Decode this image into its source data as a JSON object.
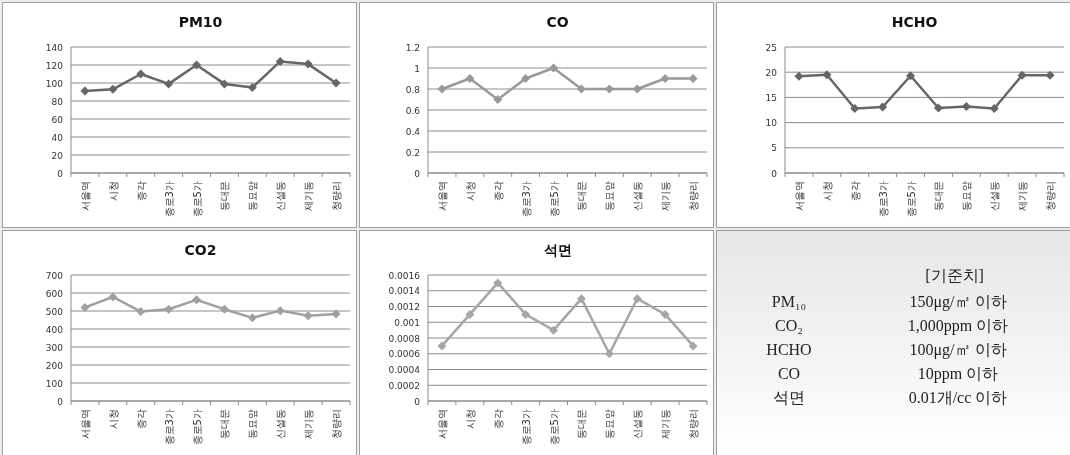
{
  "chart_data": [
    {
      "type": "line",
      "title": "PM10",
      "categories": [
        "서울역",
        "시청",
        "종각",
        "종로3가",
        "종로5가",
        "동대문",
        "동묘앞",
        "신설동",
        "제기동",
        "청량리"
      ],
      "series": [
        {
          "color": "#666666",
          "values": [
            91,
            93,
            110,
            99,
            120,
            99,
            95,
            124,
            121,
            100
          ]
        }
      ],
      "ylim": [
        0,
        140
      ],
      "yticks": [
        0,
        20,
        40,
        60,
        80,
        100,
        120,
        140
      ],
      "grid": "y",
      "marker": "diamond",
      "line_style": "solid"
    },
    {
      "type": "line",
      "title": "CO",
      "categories": [
        "서울역",
        "시청",
        "종각",
        "종로3가",
        "종로5가",
        "동대문",
        "동묘앞",
        "신설동",
        "제기동",
        "청량리"
      ],
      "series": [
        {
          "color": "#999999",
          "values": [
            0.8,
            0.9,
            0.7,
            0.9,
            1,
            0.8,
            0.8,
            0.8,
            0.9,
            0.9
          ]
        }
      ],
      "ylim": [
        0,
        1.2
      ],
      "yticks": [
        0,
        0.2,
        0.4,
        0.6,
        0.8,
        1,
        1.2
      ],
      "grid": "y",
      "marker": "diamond",
      "line_style": "solid"
    },
    {
      "type": "line",
      "title": "HCHO",
      "categories": [
        "서울역",
        "시청",
        "종각",
        "종로3가",
        "종로5가",
        "동대문",
        "동묘앞",
        "신설동",
        "제기동",
        "청량리"
      ],
      "series": [
        {
          "color": "#666666",
          "values": [
            19.2,
            19.5,
            12.8,
            13.1,
            19.3,
            12.9,
            13.2,
            12.8,
            19.4,
            19.4
          ]
        }
      ],
      "ylim": [
        0,
        25
      ],
      "yticks": [
        0,
        5,
        10,
        15,
        20,
        25
      ],
      "grid": "y",
      "marker": "diamond",
      "line_style": "solid"
    },
    {
      "type": "line",
      "title": "CO2",
      "categories": [
        "서울역",
        "시청",
        "종각",
        "종로3가",
        "종로5가",
        "동대문",
        "동묘앞",
        "신설동",
        "제기동",
        "청량리"
      ],
      "series": [
        {
          "color": "#a0a0a0",
          "values": [
            520,
            578,
            497,
            510,
            562,
            510,
            462,
            502,
            474,
            484
          ]
        }
      ],
      "ylim": [
        0,
        700
      ],
      "yticks": [
        0,
        100,
        200,
        300,
        400,
        500,
        600,
        700
      ],
      "grid": "y",
      "marker": "diamond",
      "line_style": "solid"
    },
    {
      "type": "line",
      "title": "석면",
      "categories": [
        "서울역",
        "시청",
        "종각",
        "종로3가",
        "종로5가",
        "동대문",
        "동묘앞",
        "신설동",
        "제기동",
        "청량리"
      ],
      "series": [
        {
          "color": "#a6a6a6",
          "values": [
            0.0007,
            0.0011,
            0.0015,
            0.0011,
            0.0009,
            0.0013,
            0.0006,
            0.0013,
            0.0011,
            0.0007
          ]
        }
      ],
      "ylim": [
        0,
        0.0016
      ],
      "yticks": [
        0,
        0.0002,
        0.0004,
        0.0006,
        0.0008,
        0.001,
        0.0012,
        0.0014,
        0.0016
      ],
      "grid": "y",
      "marker": "diamond",
      "line_style": "solid"
    },
    {
      "type": "other",
      "title": "[기준치]",
      "annotations": [
        "PM₁₀",
        "150μg/㎥ 이하",
        "CO₂",
        "1,000ppm 이하",
        "HCHO",
        "100μg/㎥ 이하",
        "CO",
        "10ppm 이하",
        "석면",
        "0.01개/cc 이하"
      ]
    }
  ]
}
